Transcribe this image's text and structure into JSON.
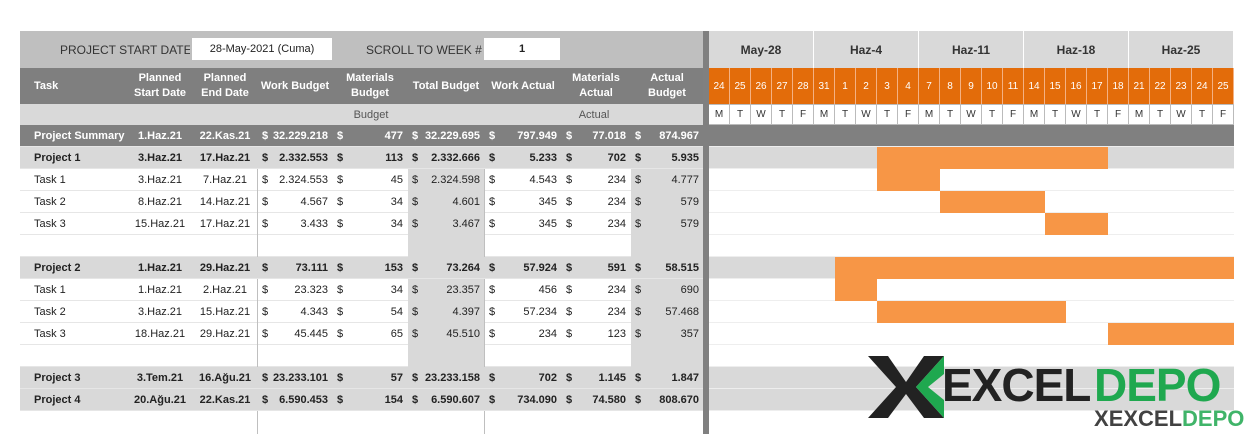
{
  "top": {
    "start_label": "PROJECT START DATE",
    "start_value": "28-May-2021 (Cuma)",
    "scroll_label": "SCROLL TO WEEK #",
    "scroll_value": "1"
  },
  "headers": {
    "task": "Task",
    "planned_start": "Planned Start Date",
    "planned_end": "Planned End Date",
    "work_budget": "Work Budget",
    "materials_budget": "Materials Budget",
    "total_budget": "Total Budget",
    "work_actual": "Work Actual",
    "materials_actual": "Materials Actual",
    "actual_budget": "Actual Budget",
    "budget_group": "Budget",
    "actual_group": "Actual"
  },
  "weeks": [
    "May-28",
    "Haz-4",
    "Haz-11",
    "Haz-18",
    "Haz-25"
  ],
  "days": [
    "24",
    "25",
    "26",
    "27",
    "28",
    "31",
    "1",
    "2",
    "3",
    "4",
    "7",
    "8",
    "9",
    "10",
    "11",
    "14",
    "15",
    "16",
    "17",
    "18",
    "21",
    "22",
    "23",
    "24",
    "25"
  ],
  "dows": [
    "M",
    "T",
    "W",
    "T",
    "F",
    "M",
    "T",
    "W",
    "T",
    "F",
    "M",
    "T",
    "W",
    "T",
    "F",
    "M",
    "T",
    "W",
    "T",
    "F",
    "M",
    "T",
    "W",
    "T",
    "F"
  ],
  "rows": [
    {
      "type": "summary",
      "task": "Project Summary",
      "start": "1.Haz.21",
      "end": "22.Kas.21",
      "wb_cur": "$",
      "wb": "32.229.218",
      "mb_cur": "$",
      "mb": "477",
      "tb_cur": "$",
      "tb": "32.229.695",
      "wa_cur": "$",
      "wa": "797.949",
      "ma_cur": "$",
      "ma": "77.018",
      "ab_cur": "$",
      "ab": "874.967",
      "bar_from": null,
      "bar_to": null
    },
    {
      "type": "project",
      "task": "Project 1",
      "start": "3.Haz.21",
      "end": "17.Haz.21",
      "wb_cur": "$",
      "wb": "2.332.553",
      "mb_cur": "$",
      "mb": "113",
      "tb_cur": "$",
      "tb": "2.332.666",
      "wa_cur": "$",
      "wa": "5.233",
      "ma_cur": "$",
      "ma": "702",
      "ab_cur": "$",
      "ab": "5.935",
      "bar_from": 8,
      "bar_to": 19
    },
    {
      "type": "task",
      "task": "Task 1",
      "start": "3.Haz.21",
      "end": "7.Haz.21",
      "wb_cur": "$",
      "wb": "2.324.553",
      "mb_cur": "$",
      "mb": "45",
      "tb_cur": "$",
      "tb": "2.324.598",
      "wa_cur": "$",
      "wa": "4.543",
      "ma_cur": "$",
      "ma": "234",
      "ab_cur": "$",
      "ab": "4.777",
      "bar_from": 8,
      "bar_to": 11
    },
    {
      "type": "task",
      "task": "Task 2",
      "start": "8.Haz.21",
      "end": "14.Haz.21",
      "wb_cur": "$",
      "wb": "4.567",
      "mb_cur": "$",
      "mb": "34",
      "tb_cur": "$",
      "tb": "4.601",
      "wa_cur": "$",
      "wa": "345",
      "ma_cur": "$",
      "ma": "234",
      "ab_cur": "$",
      "ab": "579",
      "bar_from": 11,
      "bar_to": 16
    },
    {
      "type": "task",
      "task": "Task 3",
      "start": "15.Haz.21",
      "end": "17.Haz.21",
      "wb_cur": "$",
      "wb": "3.433",
      "mb_cur": "$",
      "mb": "34",
      "tb_cur": "$",
      "tb": "3.467",
      "wa_cur": "$",
      "wa": "345",
      "ma_cur": "$",
      "ma": "234",
      "ab_cur": "$",
      "ab": "579",
      "bar_from": 16,
      "bar_to": 19
    },
    {
      "type": "blank"
    },
    {
      "type": "project",
      "task": "Project 2",
      "start": "1.Haz.21",
      "end": "29.Haz.21",
      "wb_cur": "$",
      "wb": "73.111",
      "mb_cur": "$",
      "mb": "153",
      "tb_cur": "$",
      "tb": "73.264",
      "wa_cur": "$",
      "wa": "57.924",
      "ma_cur": "$",
      "ma": "591",
      "ab_cur": "$",
      "ab": "58.515",
      "bar_from": 6,
      "bar_to": 25
    },
    {
      "type": "task",
      "task": "Task 1",
      "start": "1.Haz.21",
      "end": "2.Haz.21",
      "wb_cur": "$",
      "wb": "23.323",
      "mb_cur": "$",
      "mb": "34",
      "tb_cur": "$",
      "tb": "23.357",
      "wa_cur": "$",
      "wa": "456",
      "ma_cur": "$",
      "ma": "234",
      "ab_cur": "$",
      "ab": "690",
      "bar_from": 6,
      "bar_to": 8
    },
    {
      "type": "task",
      "task": "Task 2",
      "start": "3.Haz.21",
      "end": "15.Haz.21",
      "wb_cur": "$",
      "wb": "4.343",
      "mb_cur": "$",
      "mb": "54",
      "tb_cur": "$",
      "tb": "4.397",
      "wa_cur": "$",
      "wa": "57.234",
      "ma_cur": "$",
      "ma": "234",
      "ab_cur": "$",
      "ab": "57.468",
      "bar_from": 8,
      "bar_to": 17
    },
    {
      "type": "task",
      "task": "Task 3",
      "start": "18.Haz.21",
      "end": "29.Haz.21",
      "wb_cur": "$",
      "wb": "45.445",
      "mb_cur": "$",
      "mb": "65",
      "tb_cur": "$",
      "tb": "45.510",
      "wa_cur": "$",
      "wa": "234",
      "ma_cur": "$",
      "ma": "123",
      "ab_cur": "$",
      "ab": "357",
      "bar_from": 19,
      "bar_to": 25
    },
    {
      "type": "blank"
    },
    {
      "type": "project",
      "task": "Project 3",
      "start": "3.Tem.21",
      "end": "16.Ağu.21",
      "wb_cur": "$",
      "wb": "23.233.101",
      "mb_cur": "$",
      "mb": "57",
      "tb_cur": "$",
      "tb": "23.233.158",
      "wa_cur": "$",
      "wa": "702",
      "ma_cur": "$",
      "ma": "1.145",
      "ab_cur": "$",
      "ab": "1.847",
      "bar_from": null,
      "bar_to": null
    },
    {
      "type": "project",
      "task": "Project 4",
      "start": "20.Ağu.21",
      "end": "22.Kas.21",
      "wb_cur": "$",
      "wb": "6.590.453",
      "mb_cur": "$",
      "mb": "154",
      "tb_cur": "$",
      "tb": "6.590.607",
      "wa_cur": "$",
      "wa": "734.090",
      "ma_cur": "$",
      "ma": "74.580",
      "ab_cur": "$",
      "ab": "808.670",
      "bar_from": null,
      "bar_to": null
    }
  ],
  "watermark": {
    "text_x": "X",
    "text_main": "EXCEL",
    "text_accent": "DEPO"
  },
  "colors": {
    "header_gray": "#7f7f7f",
    "top_gray": "#bfbfbf",
    "summary_gray": "#808080",
    "project_gray": "#d9d9d9",
    "orange_bar": "#f79646",
    "orange_day": "#e36c0a",
    "budget_shade": "#d9d9d9",
    "watermark_green": "#1fa84f"
  }
}
